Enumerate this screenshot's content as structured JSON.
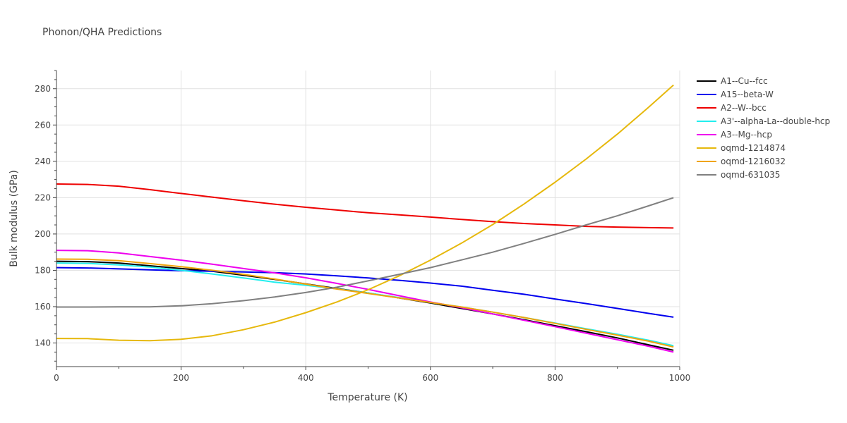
{
  "chart_data": {
    "type": "line",
    "title": "Phonon/QHA Predictions",
    "xlabel": "Temperature (K)",
    "ylabel": "Bulk modulus (GPa)",
    "xlim": [
      0,
      1000
    ],
    "ylim": [
      127,
      290
    ],
    "xticks": [
      0,
      200,
      400,
      600,
      800,
      1000
    ],
    "yticks": [
      140,
      160,
      180,
      200,
      220,
      240,
      260,
      280
    ],
    "grid": true,
    "legend_position": "top-right",
    "x": [
      0,
      50,
      100,
      150,
      200,
      250,
      300,
      350,
      400,
      450,
      500,
      550,
      600,
      650,
      700,
      750,
      800,
      850,
      900,
      950,
      990
    ],
    "series": [
      {
        "name": "A1--Cu--fcc",
        "color": "#000000",
        "values": [
          185.0,
          184.8,
          184.0,
          182.5,
          181.0,
          179.5,
          177.3,
          175.0,
          172.5,
          170.0,
          167.5,
          164.8,
          162.0,
          159.0,
          156.0,
          152.8,
          149.5,
          146.2,
          142.8,
          139.0,
          136.0
        ]
      },
      {
        "name": "A15--beta-W",
        "color": "#0000ee",
        "values": [
          181.5,
          181.3,
          180.8,
          180.3,
          179.8,
          179.5,
          179.1,
          178.7,
          178.0,
          177.0,
          175.8,
          174.5,
          173.0,
          171.3,
          169.0,
          166.8,
          164.2,
          161.7,
          159.0,
          156.3,
          154.2
        ]
      },
      {
        "name": "A2--W--bcc",
        "color": "#ee0000",
        "values": [
          227.5,
          227.3,
          226.3,
          224.4,
          222.3,
          220.3,
          218.3,
          216.4,
          214.7,
          213.2,
          211.7,
          210.5,
          209.3,
          208.0,
          206.8,
          205.8,
          205.0,
          204.2,
          203.8,
          203.5,
          203.3
        ]
      },
      {
        "name": "A3'--alpha-La--double-hcp",
        "color": "#22eeee",
        "values": [
          184.0,
          183.8,
          183.0,
          181.8,
          180.0,
          178.0,
          175.8,
          173.5,
          171.8,
          169.8,
          167.5,
          165.0,
          162.3,
          159.8,
          157.0,
          154.0,
          151.0,
          147.8,
          144.8,
          141.5,
          138.5
        ]
      },
      {
        "name": "A3--Mg--hcp",
        "color": "#ee00ee",
        "values": [
          191.0,
          190.8,
          189.6,
          187.6,
          185.6,
          183.4,
          181.0,
          178.6,
          175.9,
          172.8,
          169.5,
          166.0,
          162.6,
          159.4,
          156.0,
          152.5,
          149.0,
          145.4,
          141.8,
          138.2,
          135.0
        ]
      },
      {
        "name": "oqmd-1214874",
        "color": "#e6b80c",
        "values": [
          142.5,
          142.4,
          141.5,
          141.3,
          142.0,
          144.0,
          147.3,
          151.5,
          156.7,
          162.6,
          169.3,
          177.0,
          185.6,
          195.0,
          205.2,
          216.5,
          228.5,
          241.3,
          255.0,
          269.7,
          282.0
        ]
      },
      {
        "name": "oqmd-1216032",
        "color": "#f0a40a",
        "values": [
          186.2,
          186.1,
          185.3,
          183.7,
          182.0,
          180.0,
          177.8,
          175.2,
          172.4,
          169.7,
          167.3,
          164.8,
          162.3,
          159.8,
          157.0,
          154.0,
          150.8,
          147.5,
          144.3,
          141.0,
          137.8
        ]
      },
      {
        "name": "oqmd-631035",
        "color": "#808080",
        "values": [
          159.8,
          159.8,
          159.9,
          159.9,
          160.5,
          161.6,
          163.3,
          165.3,
          167.8,
          170.7,
          174.2,
          177.8,
          181.5,
          185.7,
          190.0,
          194.8,
          199.8,
          205.0,
          210.0,
          215.5,
          220.0
        ]
      }
    ]
  }
}
